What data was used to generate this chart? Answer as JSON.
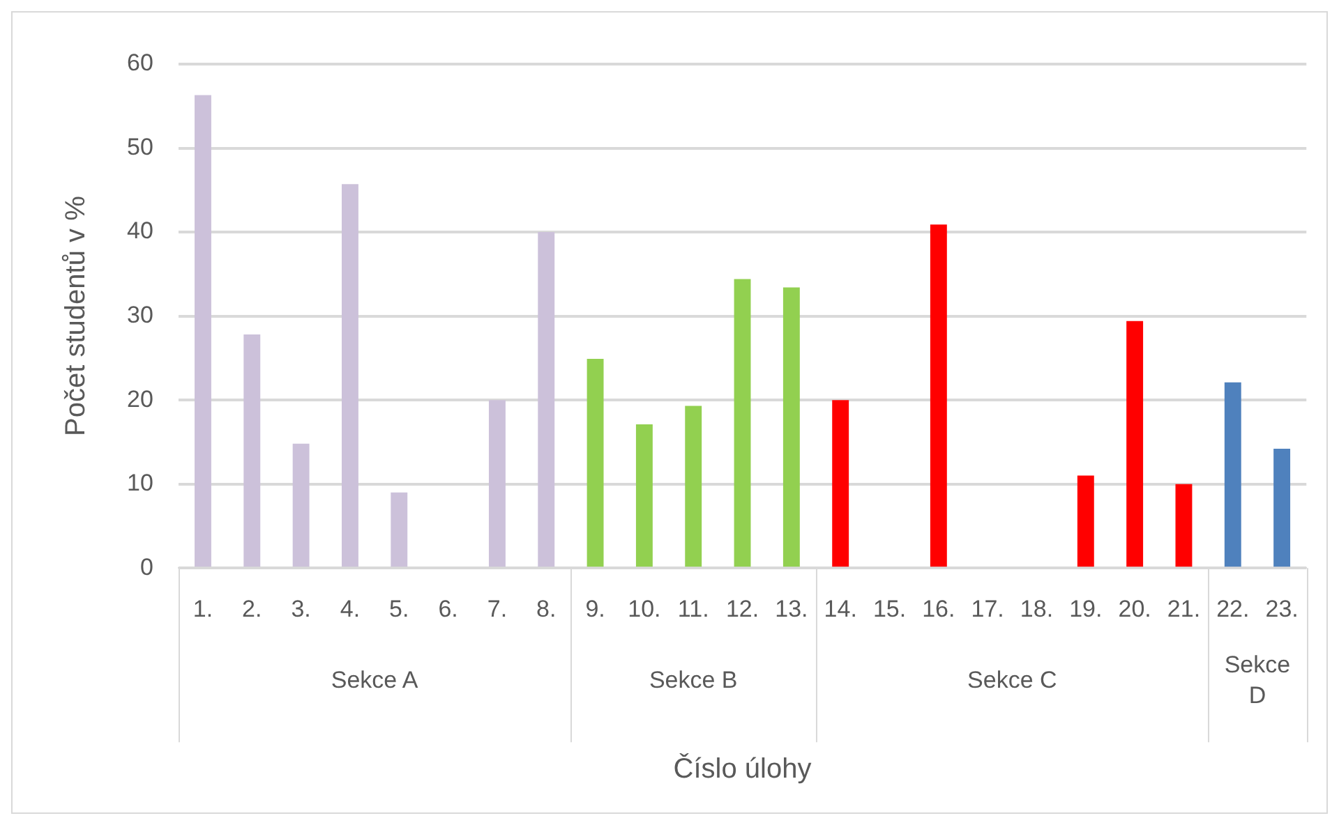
{
  "chart_data": {
    "type": "bar",
    "categories": [
      "1.",
      "2.",
      "3.",
      "4.",
      "5.",
      "6.",
      "7.",
      "8.",
      "9.",
      "10.",
      "11.",
      "12.",
      "13.",
      "14.",
      "15.",
      "16.",
      "17.",
      "18.",
      "19.",
      "20.",
      "21.",
      "22.",
      "23."
    ],
    "values": [
      56.3,
      27.8,
      14.8,
      45.7,
      9.0,
      0,
      20.0,
      40.0,
      24.9,
      17.1,
      19.3,
      34.4,
      33.4,
      20.0,
      0,
      40.9,
      0,
      0,
      11.0,
      29.4,
      10.0,
      22.1,
      14.2
    ],
    "colors": [
      "#ccc1da",
      "#ccc1da",
      "#ccc1da",
      "#ccc1da",
      "#ccc1da",
      "#ccc1da",
      "#ccc1da",
      "#ccc1da",
      "#92d050",
      "#92d050",
      "#92d050",
      "#92d050",
      "#92d050",
      "#ff0000",
      "#ff0000",
      "#ff0000",
      "#ff0000",
      "#ff0000",
      "#ff0000",
      "#ff0000",
      "#ff0000",
      "#4f81bd",
      "#4f81bd"
    ],
    "ylabel": "Počet studentů v %",
    "xlabel": "Číslo úlohy",
    "ylim": [
      0,
      60
    ],
    "yticks": [
      0,
      10,
      20,
      30,
      40,
      50,
      60
    ],
    "grid": "y",
    "legend": false,
    "annotations": [
      "Sekce A",
      "Sekce B",
      "Sekce C",
      "Sekce D"
    ]
  }
}
